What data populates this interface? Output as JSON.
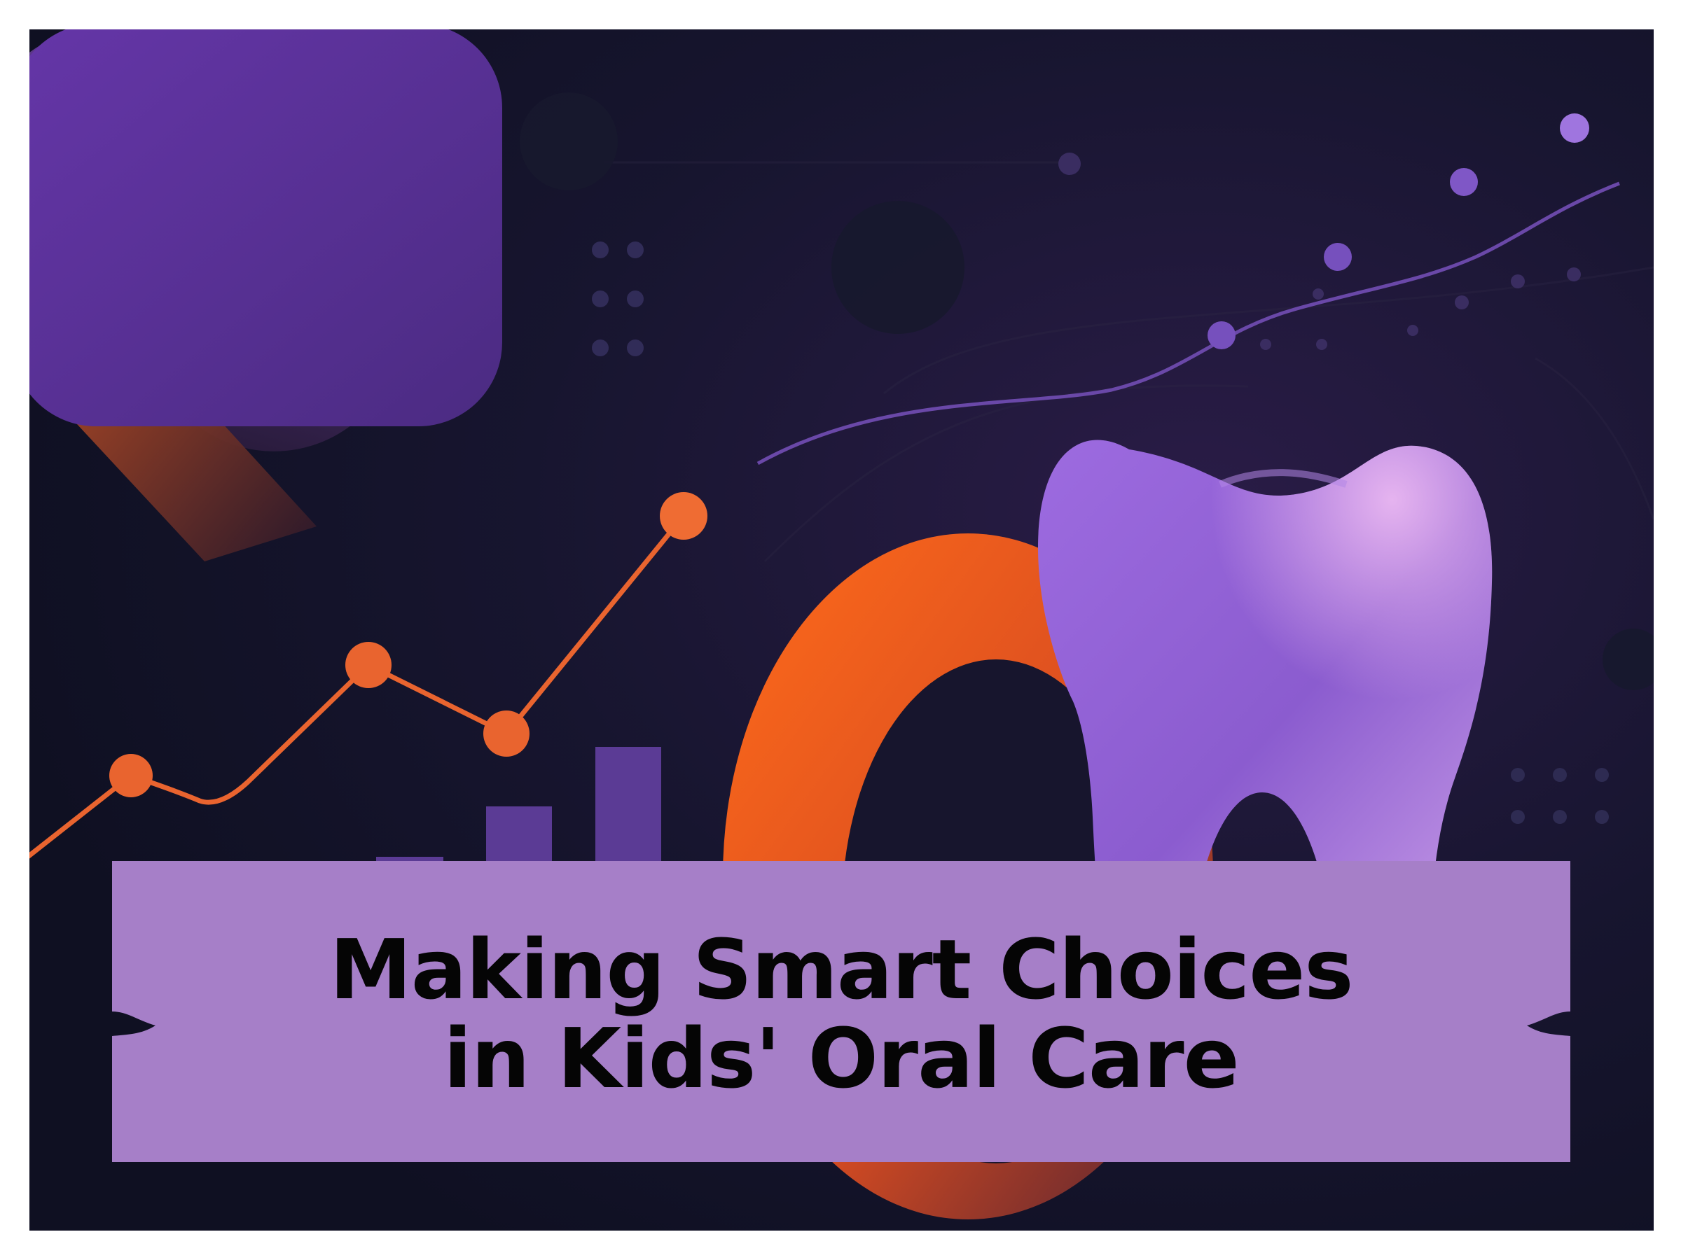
{
  "title": {
    "line1": "Making Smart Choices",
    "line2": "in Kids' Oral Care"
  },
  "colors": {
    "background": "#121326",
    "purple": "#8656c8",
    "orange": "#ea5d25",
    "banner": "#a67fc8",
    "text": "#050505"
  },
  "icons": {
    "tooth": "tooth-icon",
    "orange_chart": "trend-line-icon",
    "purple_chart": "trend-line-icon"
  }
}
